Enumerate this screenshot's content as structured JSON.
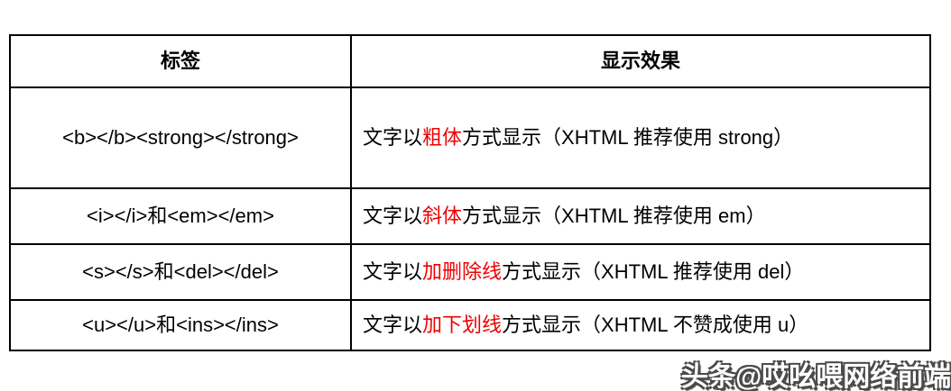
{
  "table": {
    "header": {
      "tag_label": "标签",
      "effect_label": "显示效果"
    },
    "rows": [
      {
        "tag": "<b></b><strong></strong>",
        "prefix": "文字以",
        "highlight": "粗体",
        "suffix": "方式显示（XHTML 推荐使用 strong）"
      },
      {
        "tag": "<i></i>和<em></em>",
        "prefix": "文字以",
        "highlight": "斜体",
        "suffix": "方式显示（XHTML 推荐使用 em）"
      },
      {
        "tag": "<s></s>和<del></del>",
        "prefix": "文字以",
        "highlight": "加删除线",
        "suffix": "方式显示（XHTML 推荐使用 del）"
      },
      {
        "tag": "<u></u>和<ins></ins>",
        "prefix": "文字以",
        "highlight": "加下划线",
        "suffix": "方式显示（XHTML 不赞成使用 u）"
      }
    ]
  },
  "watermark": {
    "text": "头条@哎吆喂网络前端"
  },
  "colors": {
    "highlight_red": "#ee0000",
    "border_black": "#000000",
    "watermark_gray": "#4a4a4a",
    "background": "#ffffff"
  }
}
